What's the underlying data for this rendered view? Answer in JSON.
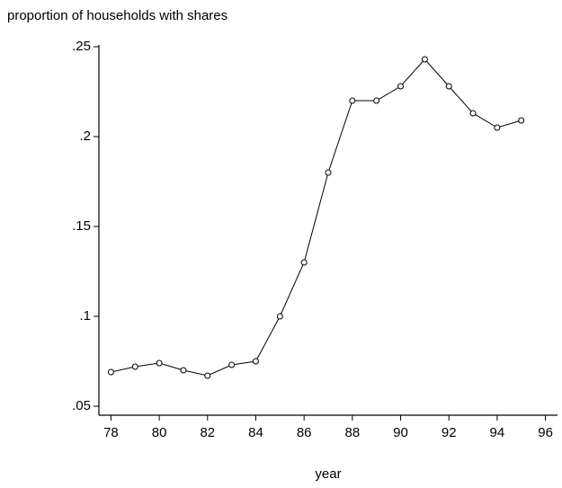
{
  "chart_data": {
    "type": "line",
    "title": "proportion of households with shares",
    "x_label": "year",
    "x": [
      78,
      79,
      80,
      81,
      82,
      83,
      84,
      85,
      86,
      87,
      88,
      89,
      90,
      91,
      92,
      93,
      94,
      95
    ],
    "series": [
      {
        "name": "proportion of households with shares",
        "color": "#000000",
        "values": [
          0.069,
          0.072,
          0.074,
          0.07,
          0.067,
          0.073,
          0.075,
          0.1,
          0.13,
          0.18,
          0.22,
          0.22,
          0.228,
          0.243,
          0.228,
          0.213,
          0.205,
          0.209
        ]
      }
    ],
    "xlim": [
      77.5,
      96.5
    ],
    "xticks": [
      78,
      80,
      82,
      84,
      86,
      88,
      90,
      92,
      94,
      96
    ],
    "ylim": [
      0.045,
      0.251
    ],
    "yticks": [
      {
        "value": 0.05,
        "label": ".05"
      },
      {
        "value": 0.1,
        "label": ".1"
      },
      {
        "value": 0.15,
        "label": ".15"
      },
      {
        "value": 0.2,
        "label": ".2"
      },
      {
        "value": 0.25,
        "label": ".25"
      }
    ]
  }
}
